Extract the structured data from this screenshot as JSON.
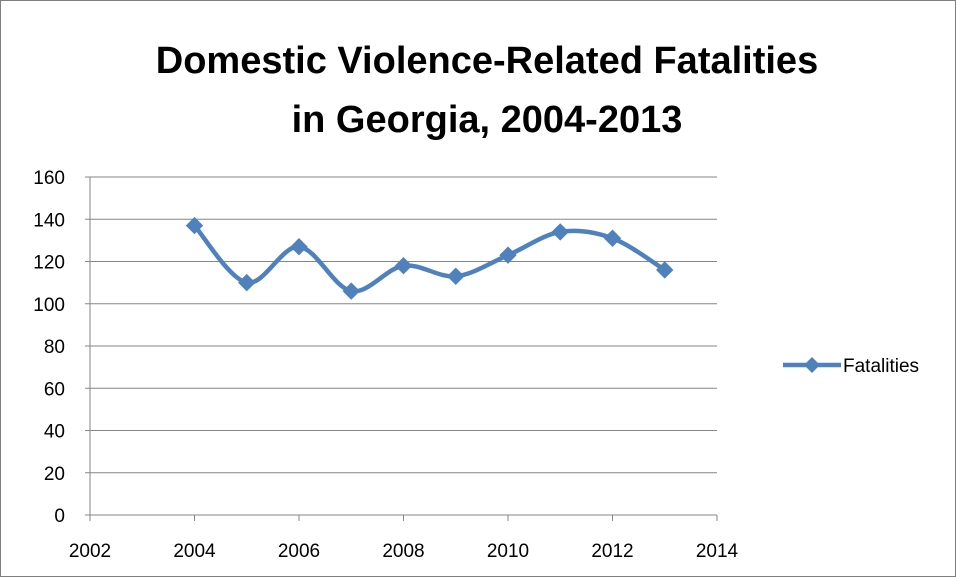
{
  "chart_data": {
    "type": "scatter",
    "title": "Domestic Violence-Related Fatalities in Georgia, 2004-2013",
    "title_lines": [
      "Domestic Violence-Related Fatalities",
      "in Georgia, 2004-2013"
    ],
    "xlabel": "",
    "ylabel": "",
    "xlim": [
      2002,
      2014
    ],
    "ylim": [
      0,
      160
    ],
    "x_ticks": [
      2002,
      2004,
      2006,
      2008,
      2010,
      2012,
      2014
    ],
    "y_ticks": [
      0,
      20,
      40,
      60,
      80,
      100,
      120,
      140,
      160
    ],
    "grid": "horizontal",
    "legend_position": "right",
    "smoothed_lines": true,
    "series": [
      {
        "name": "Fatalities",
        "color": "#4f81bd",
        "marker": "diamond",
        "points": [
          {
            "x": 2004,
            "y": 137
          },
          {
            "x": 2005,
            "y": 110
          },
          {
            "x": 2006,
            "y": 127
          },
          {
            "x": 2007,
            "y": 106
          },
          {
            "x": 2008,
            "y": 118
          },
          {
            "x": 2009,
            "y": 113
          },
          {
            "x": 2010,
            "y": 123
          },
          {
            "x": 2011,
            "y": 134
          },
          {
            "x": 2012,
            "y": 131
          },
          {
            "x": 2013,
            "y": 116
          }
        ]
      }
    ]
  }
}
